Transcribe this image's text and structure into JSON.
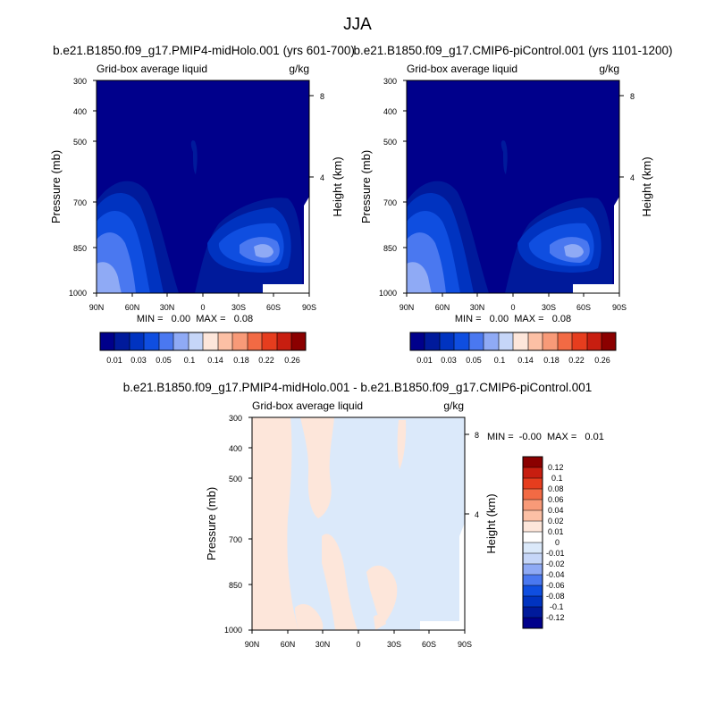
{
  "figure": {
    "title": "JJA"
  },
  "colors": {
    "abs_levels": [
      "#00008b",
      "#001a9b",
      "#0033c0",
      "#0f4ee0",
      "#4a78f0",
      "#8faaf5",
      "#c6d6f8",
      "#fde6da",
      "#fcc0a5",
      "#f89a78",
      "#f26a44",
      "#e63d1e",
      "#c81e10",
      "#8b0000"
    ],
    "diff_levels": [
      "#00008b",
      "#001a9b",
      "#0033c0",
      "#0f4ee0",
      "#4a78f0",
      "#8faaf5",
      "#c6d6f8",
      "#dbe9fa",
      "#fde6da",
      "#fcc0a5",
      "#f89a78",
      "#f26a44",
      "#e63d1e",
      "#c81e10",
      "#8b0000"
    ]
  },
  "chart_data": [
    {
      "id": "panel-1",
      "type": "heatmap",
      "title": "b.e21.B1850.f09_g17.PMIP4-midHolo.001 (yrs 601-700)",
      "left_label": "Grid-box average liquid",
      "right_label": "g/kg",
      "ylabel": "Pressure (mb)",
      "ylabel_right": "Height (km)",
      "x_ticks": [
        "90N",
        "60N",
        "30N",
        "0",
        "30S",
        "60S",
        "90S"
      ],
      "y_ticks": [
        "300",
        "400",
        "500",
        "700",
        "850",
        "1000"
      ],
      "y_ticks_right": [
        "8",
        "4"
      ],
      "stats": "MIN =   0.00  MAX =   0.08",
      "colorbar_labels": [
        "0.01",
        "0.03",
        "0.05",
        "0.1",
        "0.14",
        "0.18",
        "0.22",
        "0.26"
      ]
    },
    {
      "id": "panel-2",
      "type": "heatmap",
      "title": "b.e21.B1850.f09_g17.CMIP6-piControl.001 (yrs 1101-1200)",
      "left_label": "Grid-box average liquid",
      "right_label": "g/kg",
      "ylabel": "Pressure (mb)",
      "ylabel_right": "Height (km)",
      "x_ticks": [
        "90N",
        "60N",
        "30N",
        "0",
        "30S",
        "60S",
        "90S"
      ],
      "y_ticks": [
        "300",
        "400",
        "500",
        "700",
        "850",
        "1000"
      ],
      "y_ticks_right": [
        "8",
        "4"
      ],
      "stats": "MIN =   0.00  MAX =   0.08",
      "colorbar_labels": [
        "0.01",
        "0.03",
        "0.05",
        "0.1",
        "0.14",
        "0.18",
        "0.22",
        "0.26"
      ]
    },
    {
      "id": "panel-diff",
      "type": "heatmap",
      "title": "b.e21.B1850.f09_g17.PMIP4-midHolo.001 - b.e21.B1850.f09_g17.CMIP6-piControl.001",
      "left_label": "Grid-box average liquid",
      "right_label": "g/kg",
      "ylabel": "Pressure (mb)",
      "ylabel_right": "Height (km)",
      "x_ticks": [
        "90N",
        "60N",
        "30N",
        "0",
        "30S",
        "60S",
        "90S"
      ],
      "y_ticks": [
        "300",
        "400",
        "500",
        "700",
        "850",
        "1000"
      ],
      "y_ticks_right": [
        "8",
        "4"
      ],
      "stats": "MIN =  -0.00  MAX =   0.01",
      "colorbar_labels": [
        "0.12",
        "0.1",
        "0.08",
        "0.06",
        "0.04",
        "0.02",
        "0.01",
        "0",
        "-0.01",
        "-0.02",
        "-0.04",
        "-0.06",
        "-0.08",
        "-0.1",
        "-0.12"
      ]
    }
  ]
}
